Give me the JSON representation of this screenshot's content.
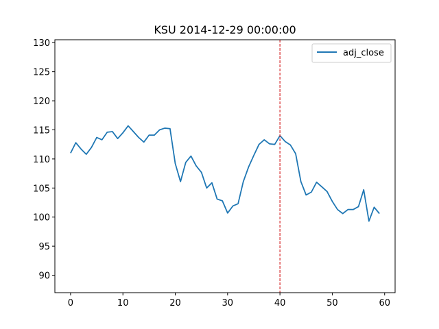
{
  "chart_data": {
    "type": "line",
    "title": "KSU 2014-12-29 00:00:00",
    "xlabel": "",
    "ylabel": "",
    "xlim": [
      -3,
      62
    ],
    "ylim": [
      87,
      130.5
    ],
    "xticks": [
      0,
      10,
      20,
      30,
      40,
      50,
      60
    ],
    "yticks": [
      90,
      95,
      100,
      105,
      110,
      115,
      120,
      125,
      130
    ],
    "grid": false,
    "legend_position": "top-right",
    "series": [
      {
        "name": "adj_close",
        "color": "#1f77b4",
        "x": [
          0,
          1,
          2,
          3,
          4,
          5,
          6,
          7,
          8,
          9,
          10,
          11,
          12,
          13,
          14,
          15,
          16,
          17,
          18,
          19,
          20,
          21,
          22,
          23,
          24,
          25,
          26,
          27,
          28,
          29,
          30,
          31,
          32,
          33,
          34,
          35,
          36,
          37,
          38,
          39,
          40,
          41,
          42,
          43,
          44,
          45,
          46,
          47,
          48,
          49,
          50,
          51,
          52,
          53,
          54,
          55,
          56,
          57,
          58,
          59
        ],
        "values": [
          111.0,
          112.8,
          111.7,
          110.8,
          112.0,
          113.7,
          113.3,
          114.6,
          114.7,
          113.5,
          114.5,
          115.7,
          114.7,
          113.7,
          112.9,
          114.1,
          114.1,
          115.0,
          115.3,
          115.2,
          109.2,
          106.1,
          109.4,
          110.5,
          108.8,
          107.7,
          105.0,
          105.9,
          103.1,
          102.8,
          100.7,
          101.9,
          102.3,
          106.1,
          108.6,
          110.6,
          112.5,
          113.3,
          112.6,
          112.5,
          114.0,
          113.0,
          112.4,
          110.9,
          106.1,
          103.8,
          104.3,
          106.0,
          105.2,
          104.4,
          102.7,
          101.3,
          100.6,
          101.3,
          101.3,
          101.8,
          104.7,
          99.3,
          101.7,
          100.6
        ]
      }
    ],
    "annotations": [
      {
        "type": "vline",
        "x": 40,
        "color": "#d62728",
        "style": "dashed"
      }
    ]
  }
}
